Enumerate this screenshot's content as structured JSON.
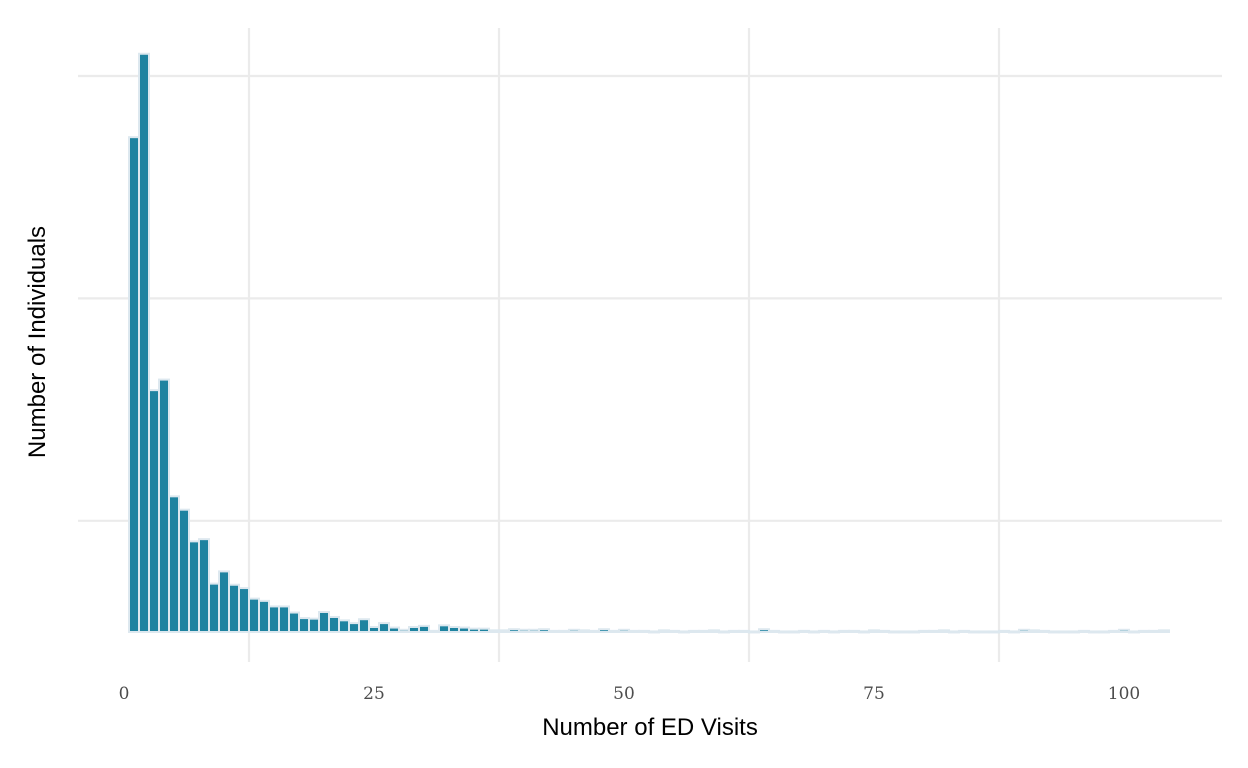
{
  "chart_data": {
    "type": "bar",
    "xlabel": "Number of ED Visits",
    "ylabel": "Number of Individuals",
    "x_ticks": [
      "0",
      "25",
      "50",
      "75",
      "100"
    ],
    "x_tick_values": [
      0,
      25,
      50,
      75,
      100
    ],
    "xlim": [
      -0.5,
      105
    ],
    "ylim": [
      0,
      1
    ],
    "y_tick_labels_shown": false,
    "grid": true,
    "bar_color": "#1e83a0",
    "bar_outline_color": "#dde8ef",
    "x": [
      1,
      2,
      3,
      4,
      5,
      6,
      7,
      8,
      9,
      10,
      11,
      12,
      13,
      14,
      15,
      16,
      17,
      18,
      19,
      20,
      21,
      22,
      23,
      24,
      25,
      26,
      27,
      28,
      29,
      30,
      31,
      32,
      33,
      34,
      35,
      36,
      37,
      38,
      39,
      40,
      41,
      42,
      43,
      44,
      45,
      46,
      47,
      48,
      49,
      50,
      51,
      52,
      53,
      54,
      55,
      56,
      57,
      58,
      59,
      60,
      61,
      62,
      63,
      64,
      65,
      66,
      67,
      68,
      69,
      70,
      71,
      72,
      73,
      74,
      75,
      76,
      77,
      78,
      79,
      80,
      81,
      82,
      83,
      84,
      85,
      86,
      87,
      88,
      89,
      90,
      91,
      92,
      93,
      94,
      95,
      96,
      97,
      98,
      99,
      100,
      101,
      102,
      103,
      104
    ],
    "values": [
      0.89,
      1.04,
      0.435,
      0.454,
      0.244,
      0.22,
      0.163,
      0.167,
      0.087,
      0.109,
      0.085,
      0.079,
      0.06,
      0.056,
      0.046,
      0.046,
      0.035,
      0.025,
      0.024,
      0.036,
      0.027,
      0.021,
      0.016,
      0.023,
      0.009,
      0.016,
      0.008,
      0.004,
      0.009,
      0.011,
      0.002,
      0.012,
      0.009,
      0.008,
      0.006,
      0.006,
      0.003,
      0.003,
      0.005,
      0.004,
      0.004,
      0.005,
      0.002,
      0.002,
      0.004,
      0.003,
      0.002,
      0.005,
      0.002,
      0.004,
      0.002,
      0.002,
      0.001,
      0.003,
      0.002,
      0.001,
      0.002,
      0.002,
      0.003,
      0.001,
      0.002,
      0.002,
      0.001,
      0.005,
      0.002,
      0.001,
      0.001,
      0.002,
      0.001,
      0.002,
      0.001,
      0.002,
      0.002,
      0.001,
      0.003,
      0.002,
      0.001,
      0.001,
      0.001,
      0.002,
      0.002,
      0.003,
      0.001,
      0.002,
      0.001,
      0.001,
      0.001,
      0.002,
      0.001,
      0.004,
      0.003,
      0.002,
      0.001,
      0.001,
      0.001,
      0.002,
      0.001,
      0.001,
      0.002,
      0.004,
      0.001,
      0.002,
      0.002,
      0.003
    ]
  }
}
